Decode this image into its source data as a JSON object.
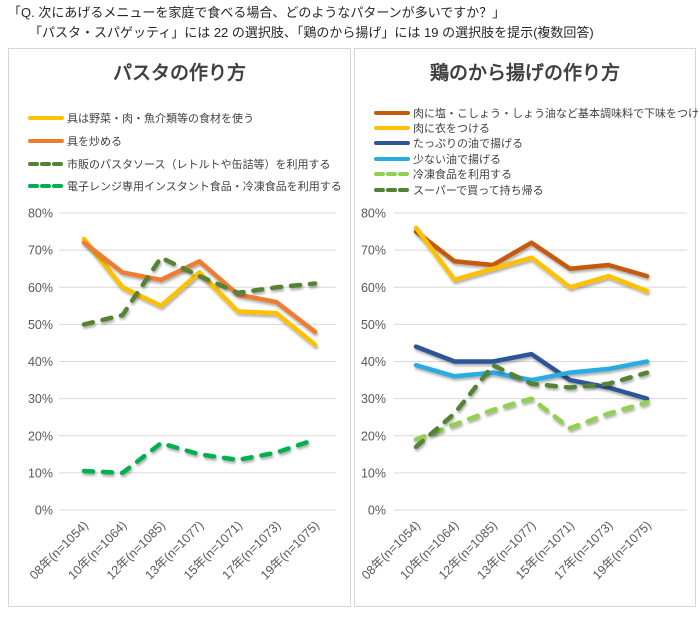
{
  "header": {
    "line1": "「Q. 次にあげるメニューを家庭で食べる場合、どのようなパターンが多いですか？」",
    "line2": "「パスタ・スパゲッティ」には 22 の選択肢、「鶏のから揚げ」には 19 の選択肢を提示(複数回答)"
  },
  "colors": {
    "grid": "#d9d9d9",
    "axis_text": "#595959",
    "panel_border": "#d6d6d6",
    "title_text": "#404040"
  },
  "chart_data": [
    {
      "type": "line",
      "title": "パスタの作り方",
      "xlabel": "",
      "ylabel": "",
      "ylim": [
        0,
        80
      ],
      "ytick_step": 10,
      "yticks": [
        "0%",
        "10%",
        "20%",
        "30%",
        "40%",
        "50%",
        "60%",
        "70%",
        "80%"
      ],
      "grid": true,
      "legend_position": "top-left",
      "categories": [
        "08年(n=1054)",
        "10年(n=1064)",
        "12年(n=1085)",
        "13年(n=1077)",
        "15年(n=1071)",
        "17年(n=1073)",
        "19年(n=1075)"
      ],
      "series": [
        {
          "name": "具は野菜・肉・魚介類等の食材を使う",
          "color": "#FFC000",
          "dash": false,
          "values": [
            73,
            60,
            55,
            64,
            53.5,
            53,
            44.5
          ]
        },
        {
          "name": "具を炒める",
          "color": "#ED7D31",
          "dash": false,
          "values": [
            72,
            64,
            62,
            67,
            58,
            56,
            48
          ]
        },
        {
          "name": "市販のパスタソース（レトルトや缶詰等）を利用する",
          "color": "#548235",
          "dash": true,
          "values": [
            50,
            52.5,
            68,
            63,
            58.5,
            60,
            61
          ]
        },
        {
          "name": "電子レンジ専用インスタント食品・冷凍食品を利用する",
          "color": "#00B050",
          "dash": true,
          "values": [
            10.5,
            10,
            18,
            15,
            13.5,
            15.5,
            19
          ]
        }
      ]
    },
    {
      "type": "line",
      "title": "鶏のから揚げの作り方",
      "xlabel": "",
      "ylabel": "",
      "ylim": [
        0,
        80
      ],
      "ytick_step": 10,
      "yticks": [
        "0%",
        "10%",
        "20%",
        "30%",
        "40%",
        "50%",
        "60%",
        "70%",
        "80%"
      ],
      "grid": true,
      "legend_position": "top-left",
      "categories": [
        "08年(n=1054)",
        "10年(n=1064)",
        "12年(n=1085)",
        "13年(n=1077)",
        "15年(n=1071)",
        "17年(n=1073)",
        "19年(n=1075)"
      ],
      "series": [
        {
          "name": "肉に塩・こしょう・しょう油など基本調味料で下味をつける",
          "color": "#C55A11",
          "dash": false,
          "values": [
            75,
            67,
            66,
            72,
            65,
            66,
            63
          ]
        },
        {
          "name": "肉に衣をつける",
          "color": "#FFC000",
          "dash": false,
          "values": [
            76,
            62,
            65,
            68,
            60,
            63,
            59
          ]
        },
        {
          "name": "たっぷりの油で揚げる",
          "color": "#2F5597",
          "dash": false,
          "values": [
            44,
            40,
            40,
            42,
            35,
            33,
            30
          ]
        },
        {
          "name": "少ない油で揚げる",
          "color": "#29ABE2",
          "dash": false,
          "values": [
            39,
            36,
            37,
            35,
            37,
            38,
            40
          ]
        },
        {
          "name": "冷凍食品を利用する",
          "color": "#92D050",
          "dash": true,
          "values": [
            19,
            23,
            27,
            30,
            22,
            26,
            29
          ]
        },
        {
          "name": "スーパーで買って持ち帰る",
          "color": "#548235",
          "dash": true,
          "values": [
            17,
            26,
            39,
            34,
            33,
            34,
            37
          ]
        }
      ]
    }
  ]
}
